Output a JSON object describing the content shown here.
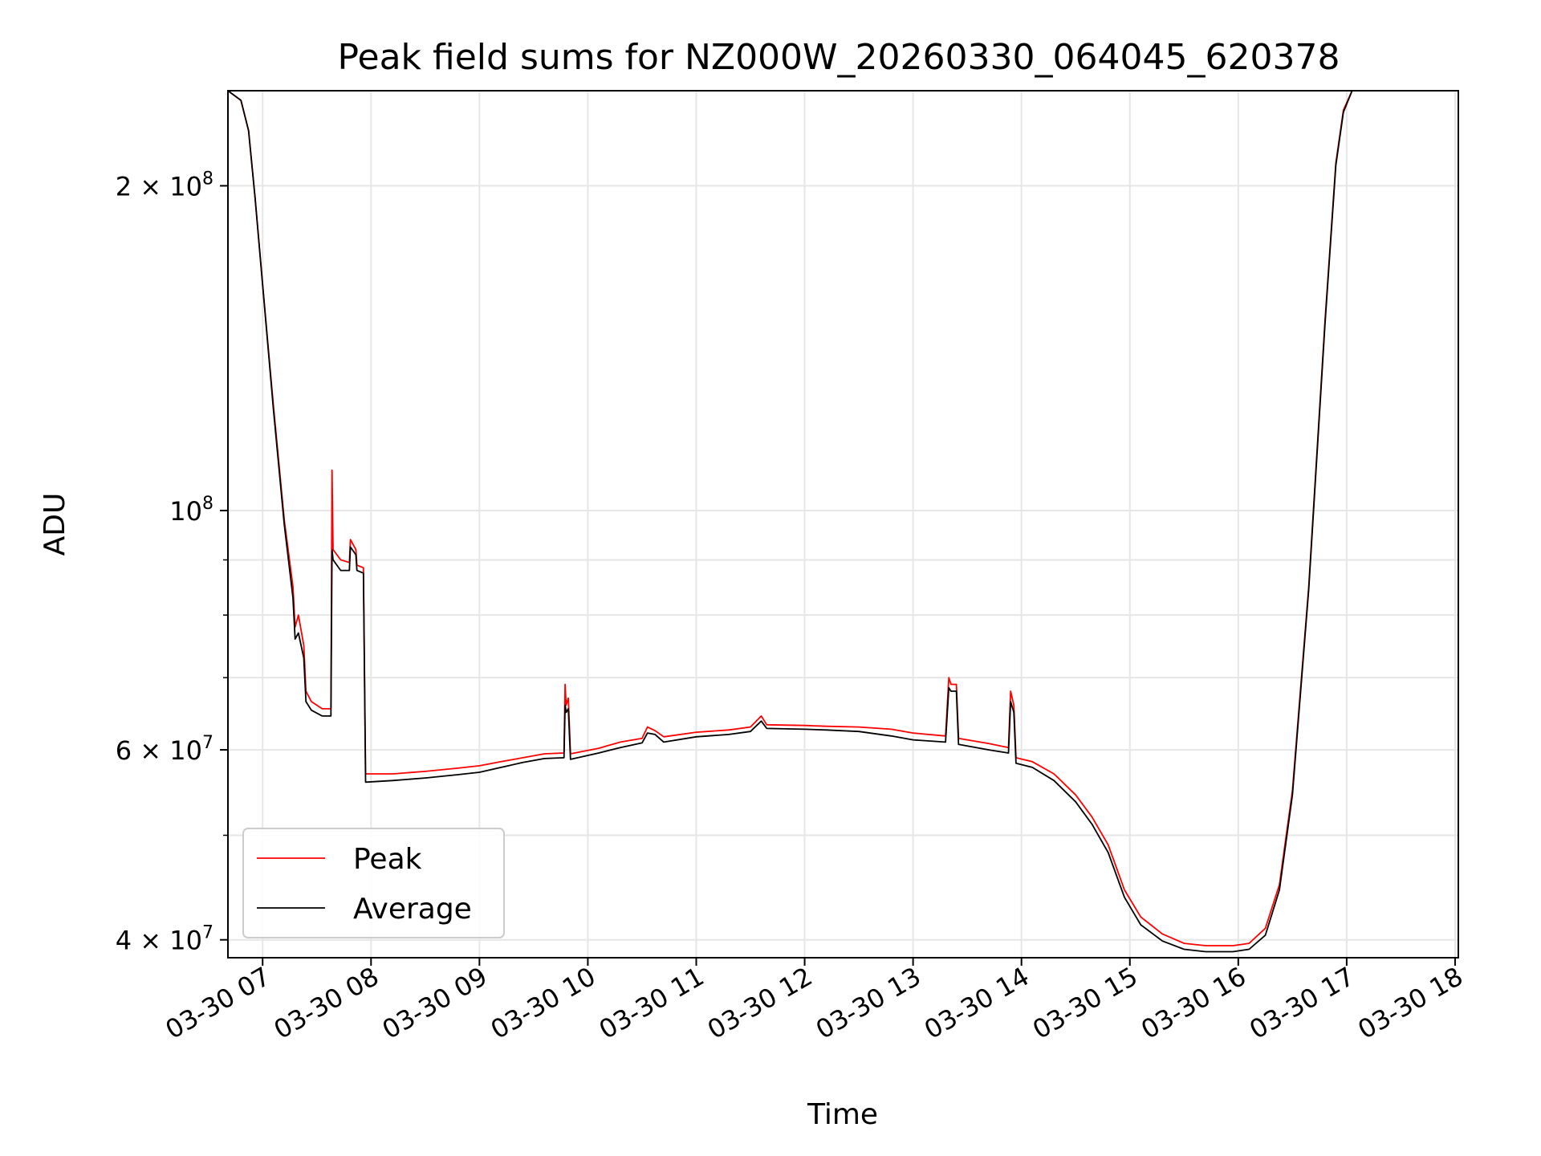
{
  "chart_data": {
    "type": "line",
    "title": "Peak field sums for NZ000W_20260330_064045_620378",
    "xlabel": "Time",
    "ylabel": "ADU",
    "yscale": "log",
    "ylim": [
      38500000,
      245000000
    ],
    "xlim_hours": [
      6.68,
      18.03
    ],
    "grid": true,
    "legend_position": "lower-left",
    "x_ticks": [
      {
        "hour": 7,
        "label": "03-30 07"
      },
      {
        "hour": 8,
        "label": "03-30 08"
      },
      {
        "hour": 9,
        "label": "03-30 09"
      },
      {
        "hour": 10,
        "label": "03-30 10"
      },
      {
        "hour": 11,
        "label": "03-30 11"
      },
      {
        "hour": 12,
        "label": "03-30 12"
      },
      {
        "hour": 13,
        "label": "03-30 13"
      },
      {
        "hour": 14,
        "label": "03-30 14"
      },
      {
        "hour": 15,
        "label": "03-30 15"
      },
      {
        "hour": 16,
        "label": "03-30 16"
      },
      {
        "hour": 17,
        "label": "03-30 17"
      },
      {
        "hour": 18,
        "label": "03-30 18"
      }
    ],
    "y_ticks_major": [
      {
        "value": 40000000,
        "mantissa": "4",
        "exp": "7",
        "show_mantissa": true
      },
      {
        "value": 60000000,
        "mantissa": "6",
        "exp": "7",
        "show_mantissa": true
      },
      {
        "value": 100000000,
        "mantissa": "",
        "exp": "8",
        "show_mantissa": false
      },
      {
        "value": 200000000,
        "mantissa": "2",
        "exp": "8",
        "show_mantissa": true
      }
    ],
    "y_ticks_minor": [
      50000000,
      70000000,
      80000000,
      90000000
    ],
    "series": [
      {
        "name": "Peak",
        "color": "#ff0000",
        "points": [
          [
            6.68,
            245000000
          ],
          [
            6.8,
            240000000
          ],
          [
            6.87,
            225000000
          ],
          [
            6.93,
            195000000
          ],
          [
            7.0,
            162000000
          ],
          [
            7.1,
            125000000
          ],
          [
            7.2,
            98000000
          ],
          [
            7.28,
            85000000
          ],
          [
            7.3,
            78000000
          ],
          [
            7.33,
            80000000
          ],
          [
            7.38,
            75000000
          ],
          [
            7.4,
            68000000
          ],
          [
            7.45,
            66500000
          ],
          [
            7.55,
            65500000
          ],
          [
            7.63,
            65500000
          ],
          [
            7.64,
            109000000
          ],
          [
            7.65,
            92000000
          ],
          [
            7.72,
            90000000
          ],
          [
            7.8,
            89500000
          ],
          [
            7.81,
            94000000
          ],
          [
            7.86,
            92000000
          ],
          [
            7.87,
            89000000
          ],
          [
            7.93,
            88500000
          ],
          [
            7.95,
            57000000
          ],
          [
            8.2,
            57000000
          ],
          [
            8.5,
            57300000
          ],
          [
            8.8,
            57700000
          ],
          [
            9.0,
            58000000
          ],
          [
            9.2,
            58500000
          ],
          [
            9.4,
            59000000
          ],
          [
            9.6,
            59500000
          ],
          [
            9.78,
            59600000
          ],
          [
            9.79,
            69000000
          ],
          [
            9.8,
            66000000
          ],
          [
            9.82,
            67000000
          ],
          [
            9.84,
            59500000
          ],
          [
            10.1,
            60200000
          ],
          [
            10.3,
            61000000
          ],
          [
            10.5,
            61500000
          ],
          [
            10.55,
            63000000
          ],
          [
            10.62,
            62500000
          ],
          [
            10.7,
            61700000
          ],
          [
            11.0,
            62300000
          ],
          [
            11.3,
            62600000
          ],
          [
            11.5,
            63000000
          ],
          [
            11.6,
            64500000
          ],
          [
            11.65,
            63300000
          ],
          [
            12.0,
            63200000
          ],
          [
            12.2,
            63100000
          ],
          [
            12.5,
            63000000
          ],
          [
            12.8,
            62700000
          ],
          [
            13.0,
            62200000
          ],
          [
            13.3,
            61800000
          ],
          [
            13.33,
            70000000
          ],
          [
            13.35,
            69000000
          ],
          [
            13.4,
            69000000
          ],
          [
            13.42,
            61500000
          ],
          [
            13.7,
            60800000
          ],
          [
            13.88,
            60300000
          ],
          [
            13.9,
            68000000
          ],
          [
            13.93,
            66000000
          ],
          [
            13.95,
            59000000
          ],
          [
            14.1,
            58500000
          ],
          [
            14.3,
            57000000
          ],
          [
            14.5,
            54500000
          ],
          [
            14.65,
            52000000
          ],
          [
            14.8,
            49000000
          ],
          [
            14.95,
            44500000
          ],
          [
            15.1,
            42000000
          ],
          [
            15.3,
            40500000
          ],
          [
            15.5,
            39700000
          ],
          [
            15.7,
            39500000
          ],
          [
            15.95,
            39500000
          ],
          [
            16.1,
            39700000
          ],
          [
            16.25,
            41000000
          ],
          [
            16.38,
            45000000
          ],
          [
            16.5,
            55000000
          ],
          [
            16.65,
            85000000
          ],
          [
            16.8,
            150000000
          ],
          [
            16.9,
            210000000
          ],
          [
            16.97,
            235000000
          ],
          [
            17.05,
            245000000
          ],
          [
            18.03,
            245000000
          ]
        ]
      },
      {
        "name": "Average",
        "color": "#000000",
        "points": [
          [
            6.68,
            245000000
          ],
          [
            6.8,
            240000000
          ],
          [
            6.87,
            225000000
          ],
          [
            6.93,
            195000000
          ],
          [
            7.0,
            162000000
          ],
          [
            7.1,
            124000000
          ],
          [
            7.2,
            97000000
          ],
          [
            7.28,
            83000000
          ],
          [
            7.3,
            76000000
          ],
          [
            7.33,
            77000000
          ],
          [
            7.38,
            73000000
          ],
          [
            7.4,
            66500000
          ],
          [
            7.45,
            65300000
          ],
          [
            7.55,
            64500000
          ],
          [
            7.63,
            64500000
          ],
          [
            7.64,
            92000000
          ],
          [
            7.65,
            90000000
          ],
          [
            7.72,
            88000000
          ],
          [
            7.8,
            88000000
          ],
          [
            7.81,
            92500000
          ],
          [
            7.86,
            91000000
          ],
          [
            7.87,
            88000000
          ],
          [
            7.93,
            87500000
          ],
          [
            7.95,
            56000000
          ],
          [
            8.2,
            56200000
          ],
          [
            8.5,
            56500000
          ],
          [
            8.8,
            56900000
          ],
          [
            9.0,
            57200000
          ],
          [
            9.2,
            57800000
          ],
          [
            9.4,
            58400000
          ],
          [
            9.6,
            58900000
          ],
          [
            9.78,
            59000000
          ],
          [
            9.79,
            66000000
          ],
          [
            9.8,
            65000000
          ],
          [
            9.82,
            65500000
          ],
          [
            9.84,
            58800000
          ],
          [
            10.1,
            59600000
          ],
          [
            10.3,
            60300000
          ],
          [
            10.5,
            60900000
          ],
          [
            10.55,
            62200000
          ],
          [
            10.62,
            62000000
          ],
          [
            10.7,
            61000000
          ],
          [
            11.0,
            61700000
          ],
          [
            11.3,
            62000000
          ],
          [
            11.5,
            62400000
          ],
          [
            11.6,
            63800000
          ],
          [
            11.65,
            62800000
          ],
          [
            12.0,
            62700000
          ],
          [
            12.2,
            62600000
          ],
          [
            12.5,
            62400000
          ],
          [
            12.8,
            61800000
          ],
          [
            13.0,
            61300000
          ],
          [
            13.3,
            61000000
          ],
          [
            13.33,
            68500000
          ],
          [
            13.35,
            68000000
          ],
          [
            13.4,
            68000000
          ],
          [
            13.42,
            60700000
          ],
          [
            13.7,
            60000000
          ],
          [
            13.88,
            59600000
          ],
          [
            13.9,
            66500000
          ],
          [
            13.93,
            65000000
          ],
          [
            13.95,
            58300000
          ],
          [
            14.1,
            57800000
          ],
          [
            14.3,
            56200000
          ],
          [
            14.5,
            53700000
          ],
          [
            14.65,
            51200000
          ],
          [
            14.8,
            48200000
          ],
          [
            14.95,
            43800000
          ],
          [
            15.1,
            41300000
          ],
          [
            15.3,
            39900000
          ],
          [
            15.5,
            39200000
          ],
          [
            15.7,
            39000000
          ],
          [
            15.95,
            39000000
          ],
          [
            16.1,
            39200000
          ],
          [
            16.25,
            40400000
          ],
          [
            16.38,
            44500000
          ],
          [
            16.5,
            54500000
          ],
          [
            16.65,
            84500000
          ],
          [
            16.8,
            149000000
          ],
          [
            16.9,
            209000000
          ],
          [
            16.97,
            234000000
          ],
          [
            17.05,
            245000000
          ],
          [
            18.03,
            245000000
          ]
        ]
      }
    ]
  }
}
